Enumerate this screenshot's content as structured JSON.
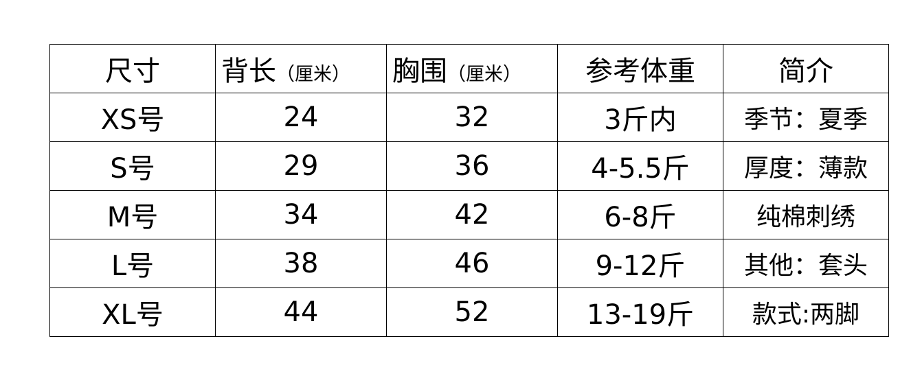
{
  "table": {
    "headers": [
      {
        "main": "尺寸",
        "unit": ""
      },
      {
        "main": "背长",
        "unit": "（厘米）"
      },
      {
        "main": "胸围",
        "unit": "（厘米）"
      },
      {
        "main": "参考体重",
        "unit": ""
      },
      {
        "main": "简介",
        "unit": ""
      }
    ],
    "rows": [
      [
        "XS号",
        "24",
        "32",
        "3斤内",
        "季节：夏季"
      ],
      [
        "S号",
        "29",
        "36",
        "4-5.5斤",
        "厚度：薄款"
      ],
      [
        "M号",
        "34",
        "42",
        "6-8斤",
        "纯棉刺绣"
      ],
      [
        "L号",
        "38",
        "46",
        "9-12斤",
        "其他：套头"
      ],
      [
        "XL号",
        "44",
        "52",
        "13-19斤",
        "款式:两脚"
      ]
    ]
  }
}
